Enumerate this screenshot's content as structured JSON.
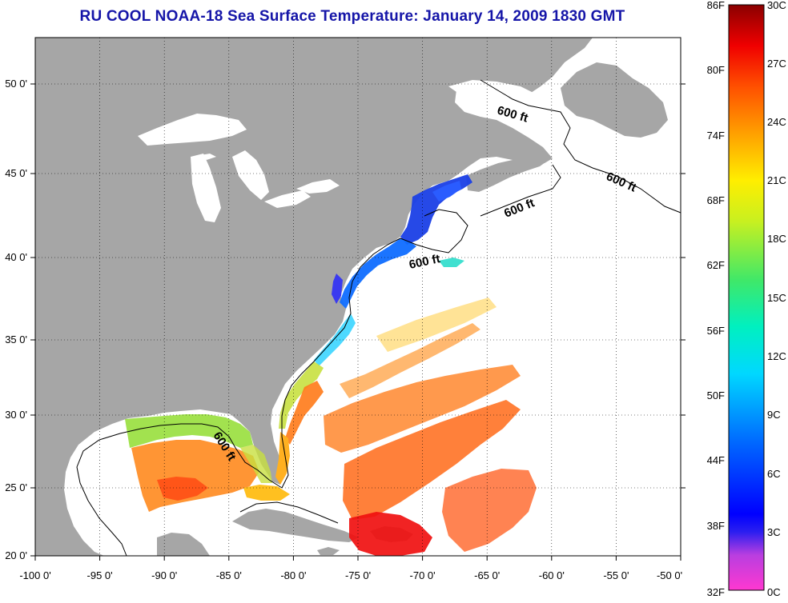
{
  "title": "RU COOL  NOAA-18  Sea Surface Temperature:  January 14, 2009 1830 GMT",
  "axes": {
    "x_ticks": [
      "-100 0'",
      "-95 0'",
      "-90 0'",
      "-85 0'",
      "-80 0'",
      "-75 0'",
      "-70 0'",
      "-65 0'",
      "-60 0'",
      "-55 0'",
      "-50 0'"
    ],
    "y_ticks": [
      "50 0'",
      "45 0'",
      "40 0'",
      "35 0'",
      "30 0'",
      "25 0'",
      "20 0'"
    ],
    "x_range": [
      -100,
      -50
    ],
    "y_range": [
      20,
      52.5
    ],
    "grid": true
  },
  "contours": {
    "depth_label": "600 ft"
  },
  "colorbar": {
    "f_labels": [
      "86F",
      "80F",
      "74F",
      "68F",
      "62F",
      "56F",
      "50F",
      "44F",
      "38F",
      "32F"
    ],
    "c_labels": [
      "30C",
      "27C",
      "24C",
      "21C",
      "18C",
      "15C",
      "12C",
      "9C",
      "6C",
      "3C",
      "0C"
    ]
  },
  "colors": {
    "land": "#a6a6a6",
    "ocean_nodata": "#ffffff",
    "title": "#1515a8"
  },
  "chart_data": {
    "type": "heatmap",
    "title": "RU COOL  NOAA-18  Sea Surface Temperature:  January 14, 2009 1830 GMT",
    "variable": "Sea Surface Temperature",
    "units": [
      "F",
      "C"
    ],
    "range_c": [
      0,
      30
    ],
    "range_f": [
      32,
      86
    ],
    "x_range": [
      -100,
      -50
    ],
    "y_range": [
      20,
      52.5
    ],
    "regions": [
      {
        "lon": -70,
        "lat": 43,
        "temp_c": 5
      },
      {
        "lon": -74,
        "lat": 39,
        "temp_c": 7
      },
      {
        "lon": -77,
        "lat": 34,
        "temp_c": 14
      },
      {
        "lon": -80,
        "lat": 31,
        "temp_c": 19
      },
      {
        "lon": -86,
        "lat": 29.5,
        "temp_c": 17
      },
      {
        "lon": -88,
        "lat": 26,
        "temp_c": 23
      },
      {
        "lon": -65,
        "lat": 28,
        "temp_c": 24
      },
      {
        "lon": -72,
        "lat": 21,
        "temp_c": 27
      }
    ]
  }
}
